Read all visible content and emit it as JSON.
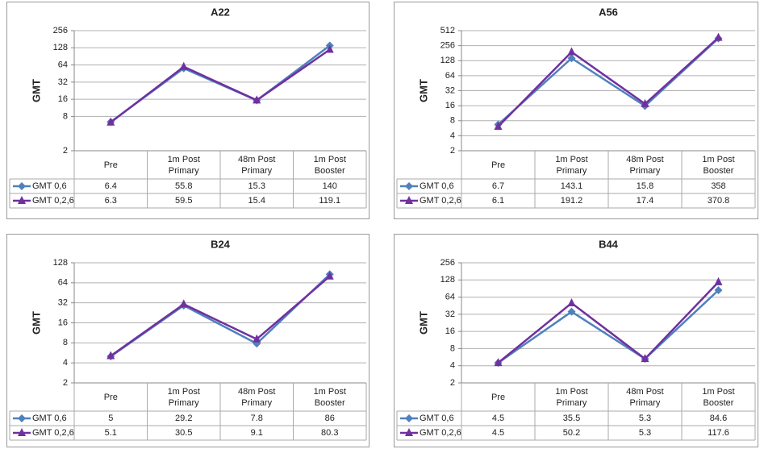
{
  "chart_data": [
    {
      "type": "line",
      "title": "A22",
      "y_label": "GMT",
      "log_base": 2,
      "grid": true,
      "categories": [
        "Pre",
        "1m Post Primary",
        "48m Post Primary",
        "1m Post Booster"
      ],
      "ylim": [
        2,
        256
      ],
      "yticks": [
        2,
        8,
        16,
        32,
        64,
        128,
        256
      ],
      "series": [
        {
          "name": "GMT 0,6",
          "color": "#4f81bd",
          "marker": "diamond",
          "values": [
            6.4,
            55.8,
            15.3,
            140
          ]
        },
        {
          "name": "GMT 0,2,6",
          "color": "#7030a0",
          "marker": "triangle",
          "values": [
            6.3,
            59.5,
            15.4,
            119.1
          ]
        }
      ]
    },
    {
      "type": "line",
      "title": "A56",
      "y_label": "GMT",
      "log_base": 2,
      "grid": true,
      "categories": [
        "Pre",
        "1m Post Primary",
        "48m Post Primary",
        "1m Post Booster"
      ],
      "ylim": [
        2,
        512
      ],
      "yticks": [
        2,
        4,
        8,
        16,
        32,
        64,
        128,
        256,
        512
      ],
      "series": [
        {
          "name": "GMT 0,6",
          "color": "#4f81bd",
          "marker": "diamond",
          "values": [
            6.7,
            143.1,
            15.8,
            358
          ]
        },
        {
          "name": "GMT 0,2,6",
          "color": "#7030a0",
          "marker": "triangle",
          "values": [
            6.1,
            191.2,
            17.4,
            370.8
          ]
        }
      ]
    },
    {
      "type": "line",
      "title": "B24",
      "y_label": "GMT",
      "log_base": 2,
      "grid": true,
      "categories": [
        "Pre",
        "1m Post Primary",
        "48m Post Primary",
        "1m Post Booster"
      ],
      "ylim": [
        2,
        128
      ],
      "yticks": [
        2,
        4,
        8,
        16,
        32,
        64,
        128
      ],
      "series": [
        {
          "name": "GMT 0,6",
          "color": "#4f81bd",
          "marker": "diamond",
          "values": [
            5,
            29.2,
            7.8,
            86
          ]
        },
        {
          "name": "GMT 0,2,6",
          "color": "#7030a0",
          "marker": "triangle",
          "values": [
            5.1,
            30.5,
            9.1,
            80.3
          ]
        }
      ]
    },
    {
      "type": "line",
      "title": "B44",
      "y_label": "GMT",
      "log_base": 2,
      "grid": true,
      "categories": [
        "Pre",
        "1m Post Primary",
        "48m Post Primary",
        "1m Post Booster"
      ],
      "ylim": [
        2,
        256
      ],
      "yticks": [
        2,
        4,
        8,
        16,
        32,
        64,
        128,
        256
      ],
      "series": [
        {
          "name": "GMT 0,6",
          "color": "#4f81bd",
          "marker": "diamond",
          "values": [
            4.5,
            35.5,
            5.3,
            84.6
          ]
        },
        {
          "name": "GMT 0,2,6",
          "color": "#7030a0",
          "marker": "triangle",
          "values": [
            4.5,
            50.2,
            5.3,
            117.6
          ]
        }
      ]
    }
  ]
}
